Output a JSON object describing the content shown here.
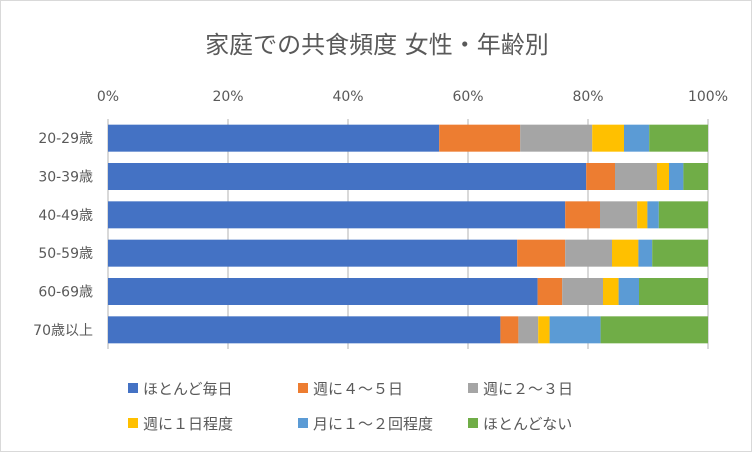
{
  "chart_data": {
    "type": "bar",
    "orientation": "horizontal",
    "stacked": "percent",
    "title": "家庭での共食頻度 女性・年齢別",
    "categories": [
      "20-29歳",
      "30-39歳",
      "40-49歳",
      "50-59歳",
      "60-69歳",
      "70歳以上"
    ],
    "xlim": [
      0,
      100
    ],
    "x_ticks": [
      "0%",
      "20%",
      "40%",
      "60%",
      "80%",
      "100%"
    ],
    "grid": true,
    "legend_position": "bottom",
    "series": [
      {
        "name": "ほとんど毎日",
        "color": "#4472c4",
        "values": [
          55.2,
          79.7,
          76.2,
          68.2,
          71.6,
          65.4
        ]
      },
      {
        "name": "週に４～５日",
        "color": "#ed7d31",
        "values": [
          13.5,
          4.8,
          5.8,
          8.0,
          4.1,
          3.0
        ]
      },
      {
        "name": "週に２～３日",
        "color": "#a5a5a5",
        "values": [
          12.0,
          7.0,
          6.2,
          7.8,
          6.8,
          3.3
        ]
      },
      {
        "name": "週に１日程度",
        "color": "#ffc000",
        "values": [
          5.3,
          2.0,
          1.7,
          4.4,
          2.6,
          1.9
        ]
      },
      {
        "name": "月に１～２回程度",
        "color": "#5b9bd5",
        "values": [
          4.2,
          2.4,
          1.9,
          2.3,
          3.4,
          8.5
        ]
      },
      {
        "name": "ほとんどない",
        "color": "#70ad47",
        "values": [
          9.8,
          4.1,
          8.2,
          9.3,
          11.5,
          17.9
        ]
      }
    ]
  }
}
